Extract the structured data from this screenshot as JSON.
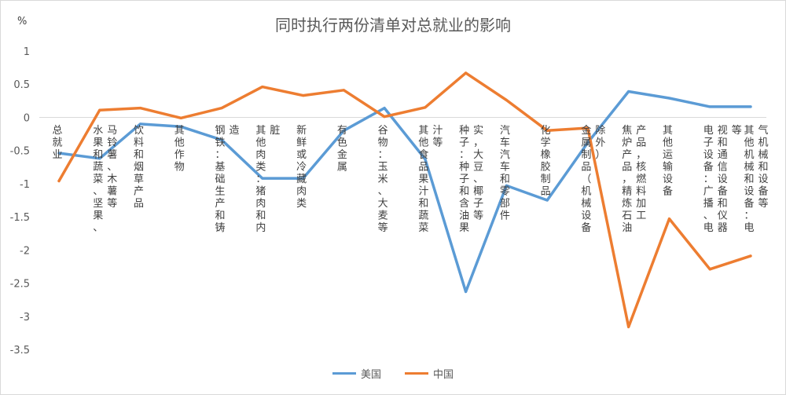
{
  "chart_data": {
    "type": "line",
    "title": "同时执行两份清单对总就业的影响",
    "ylabel": "%",
    "xlabel": "",
    "ylim": [
      -3.5,
      1
    ],
    "yticks": [
      1,
      0.5,
      0,
      -0.5,
      -1,
      -1.5,
      -2,
      -2.5,
      -3,
      -3.5
    ],
    "grid": false,
    "legend": "bottom",
    "categories": [
      "总就业",
      "水果和蔬菜、坚果、马铃薯、木薯等",
      "饮料和烟草产品",
      "其他作物",
      "钢铁：基础生产和铸造",
      "其他肉类：猪肉和内脏",
      "新鲜或冷藏肉类",
      "有色金属",
      "谷物：玉米、大麦等",
      "其他食品果汁和蔬菜汁等",
      "种子：种子和含油果实，大豆、椰子等",
      "汽车汽车和零部件",
      "化学橡胶制品",
      "金属制品（机械设备除外）",
      "焦炉产品，精炼石油产品，核燃料加工",
      "其他运输设备",
      "电子设备：广播、电视和通信设备和仪器等",
      "其他机械和设备：电气机械和设备等"
    ],
    "series": [
      {
        "name": "美国",
        "color": "#5b9bd5",
        "values": [
          -0.54,
          -0.62,
          -0.1,
          -0.14,
          -0.34,
          -0.92,
          -0.92,
          -0.2,
          0.14,
          -0.63,
          -2.63,
          -1.03,
          -1.25,
          -0.38,
          0.39,
          0.29,
          0.16,
          0.16
        ]
      },
      {
        "name": "中国",
        "color": "#ed7d31",
        "values": [
          -0.96,
          0.11,
          0.14,
          -0.01,
          0.14,
          0.46,
          0.33,
          0.41,
          0.01,
          0.15,
          0.67,
          0.26,
          -0.2,
          -0.16,
          -3.16,
          -1.53,
          -2.29,
          -2.09
        ]
      }
    ]
  }
}
